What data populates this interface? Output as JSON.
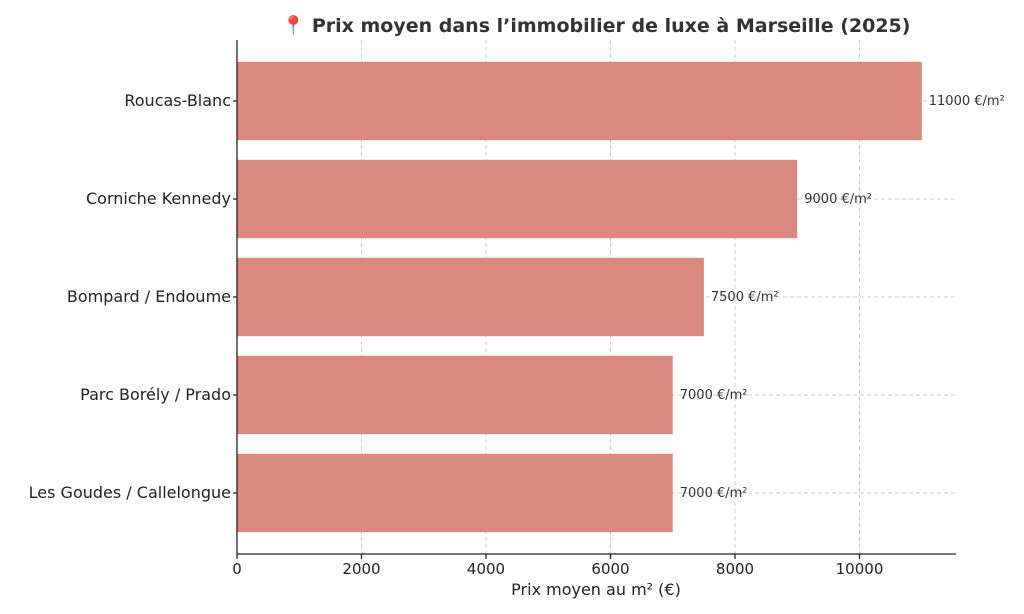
{
  "chart_data": {
    "type": "bar",
    "orientation": "horizontal",
    "title": "📍 Prix moyen dans l’immobilier de luxe à Marseille (2025)",
    "xlabel": "Prix moyen au m² (€)",
    "ylabel": "",
    "categories": [
      "Roucas-Blanc",
      "Corniche Kennedy",
      "Bompard / Endoume",
      "Parc Borély / Prado",
      "Les Goudes / Callelongue"
    ],
    "values": [
      11000,
      9000,
      7500,
      7000,
      7000
    ],
    "data_labels": [
      "11000 €/m²",
      "9000 €/m²",
      "7500 €/m²",
      "7000 €/m²",
      "7000 €/m²"
    ],
    "xlim": [
      0,
      11550
    ],
    "xticks": [
      0,
      2000,
      4000,
      6000,
      8000,
      10000
    ],
    "xtick_labels": [
      "0",
      "2000",
      "4000",
      "6000",
      "8000",
      "10000"
    ],
    "grid": true,
    "bar_color": "#d9897e"
  }
}
